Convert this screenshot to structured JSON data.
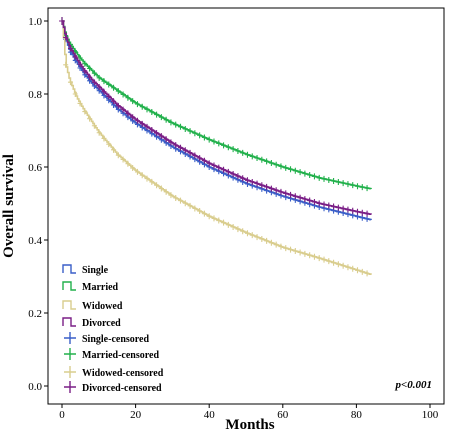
{
  "chart_data": {
    "type": "line",
    "xlabel": "Months",
    "ylabel": "Overall survival",
    "xlim": [
      0,
      100
    ],
    "ylim": [
      0,
      1.0
    ],
    "xticks": [
      0,
      20,
      40,
      60,
      80,
      100
    ],
    "yticks": [
      0.0,
      0.2,
      0.4,
      0.6,
      0.8,
      1.0
    ],
    "xtick_labels": [
      "0",
      "20",
      "40",
      "60",
      "80",
      "100"
    ],
    "ytick_labels": [
      "0.0",
      "0.2",
      "0.4",
      "0.6",
      "0.8",
      "1.0"
    ],
    "grid": false,
    "legend_position": "bottom-left",
    "annotation": "p<0.001",
    "series": [
      {
        "name": "Single",
        "color": "#3a5fc8",
        "x": [
          0,
          1,
          2,
          4,
          6,
          8,
          10,
          15,
          20,
          30,
          40,
          50,
          60,
          70,
          80,
          84
        ],
        "y": [
          1.0,
          0.95,
          0.92,
          0.885,
          0.855,
          0.83,
          0.81,
          0.76,
          0.72,
          0.655,
          0.6,
          0.555,
          0.52,
          0.49,
          0.465,
          0.455
        ]
      },
      {
        "name": "Married",
        "color": "#22b14c",
        "x": [
          0,
          1,
          2,
          4,
          6,
          8,
          10,
          15,
          20,
          30,
          40,
          50,
          60,
          70,
          80,
          84
        ],
        "y": [
          1.0,
          0.96,
          0.94,
          0.91,
          0.885,
          0.865,
          0.845,
          0.81,
          0.775,
          0.72,
          0.675,
          0.635,
          0.6,
          0.57,
          0.548,
          0.54
        ]
      },
      {
        "name": "Widowed",
        "color": "#d9cd8e",
        "x": [
          0,
          1,
          2,
          4,
          6,
          8,
          10,
          15,
          20,
          30,
          40,
          50,
          60,
          70,
          80,
          84
        ],
        "y": [
          1.0,
          0.88,
          0.84,
          0.79,
          0.755,
          0.725,
          0.695,
          0.635,
          0.59,
          0.52,
          0.465,
          0.42,
          0.38,
          0.35,
          0.318,
          0.305
        ]
      },
      {
        "name": "Divorced",
        "color": "#7a1e86",
        "x": [
          0,
          1,
          2,
          4,
          6,
          8,
          10,
          15,
          20,
          30,
          40,
          50,
          60,
          70,
          80,
          84
        ],
        "y": [
          1.0,
          0.955,
          0.93,
          0.895,
          0.865,
          0.84,
          0.82,
          0.77,
          0.73,
          0.665,
          0.61,
          0.565,
          0.53,
          0.5,
          0.478,
          0.47
        ]
      }
    ],
    "legend": [
      {
        "label": "Single",
        "kind": "line",
        "color": "#3a5fc8"
      },
      {
        "label": "Married",
        "kind": "line",
        "color": "#22b14c"
      },
      {
        "label": "Widowed",
        "kind": "line",
        "color": "#d9cd8e"
      },
      {
        "label": "Divorced",
        "kind": "line",
        "color": "#7a1e86"
      },
      {
        "label": "Single-censored",
        "kind": "censor",
        "color": "#3a5fc8"
      },
      {
        "label": "Married-censored",
        "kind": "censor",
        "color": "#22b14c"
      },
      {
        "label": "Widowed-censored",
        "kind": "censor",
        "color": "#d9cd8e"
      },
      {
        "label": "Divorced-censored",
        "kind": "censor",
        "color": "#7a1e86"
      }
    ]
  }
}
